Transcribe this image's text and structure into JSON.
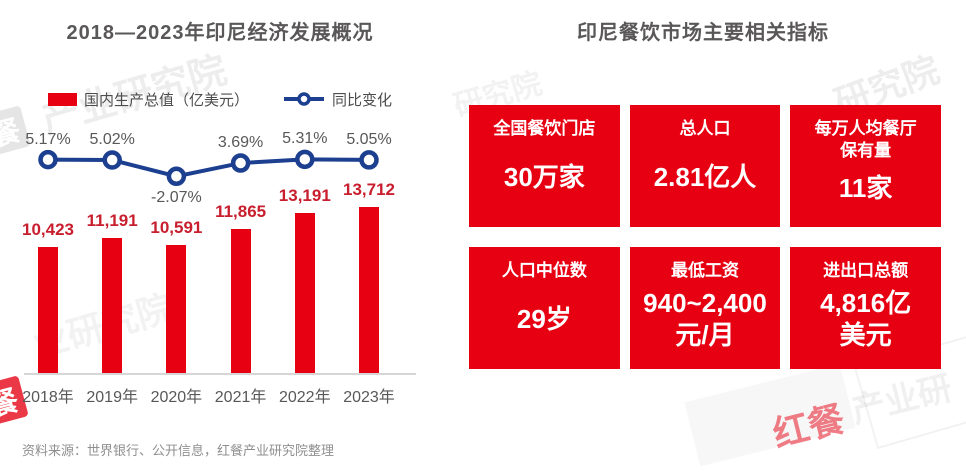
{
  "left_chart": {
    "title": "2018—2023年印尼经济发展概况",
    "legend": {
      "bar_label": "国内生产总值（亿美元）",
      "line_label": "同比变化"
    },
    "source": "资料来源：世界银行、公开信息，红餐产业研究院整理"
  },
  "chart_data": {
    "type": "bar+line combo",
    "title": "2018—2023年印尼经济发展概况",
    "categories": [
      "2018年",
      "2019年",
      "2020年",
      "2021年",
      "2022年",
      "2023年"
    ],
    "series": [
      {
        "name": "国内生产总值（亿美元）",
        "type": "bar",
        "values": [
          10423,
          11191,
          10591,
          11865,
          13191,
          13712
        ],
        "labels": [
          "10,423",
          "11,191",
          "10,591",
          "11,865",
          "13,191",
          "13,712"
        ],
        "color": "#e60012",
        "label_color": "#c81e2e"
      },
      {
        "name": "同比变化",
        "type": "line",
        "values": [
          5.17,
          5.02,
          -2.07,
          3.69,
          5.31,
          5.05
        ],
        "labels": [
          "5.17%",
          "5.02%",
          "-2.07%",
          "3.69%",
          "5.31%",
          "5.05%"
        ],
        "color": "#1c3f8f",
        "marker": "open-circle"
      }
    ],
    "legend_position": "top",
    "grid": false,
    "y_axis_visible": false,
    "bar_ylim": [
      0,
      13712
    ]
  },
  "right_panel": {
    "title": "印尼餐饮市场主要相关指标",
    "cards": [
      {
        "label": "全国餐饮门店",
        "value": "30万家"
      },
      {
        "label": "总人口",
        "value": "2.81亿人"
      },
      {
        "label": "每万人均餐厅\n保有量",
        "value": "11家"
      },
      {
        "label": "人口中位数",
        "value": "29岁"
      },
      {
        "label": "最低工资",
        "value": "940~2,400\n元/月"
      },
      {
        "label": "进出口总额",
        "value": "4,816亿\n美元"
      }
    ]
  },
  "watermarks": {
    "full": "红餐产业研究院",
    "brand": "红餐",
    "suffix_1": "产业研究院",
    "suffix_2": "业研究院",
    "suffix_3": "研究院",
    "suffix_4": "产业研",
    "logo_char": "餐"
  },
  "colors": {
    "brand_red": "#e60012",
    "bar_label_red": "#c81e2e",
    "line_navy": "#1c3f8f",
    "title_gray": "#595757",
    "axis_gray": "#d6d6d6",
    "source_gray": "#8f8f8f",
    "card_text": "#ffffff"
  }
}
